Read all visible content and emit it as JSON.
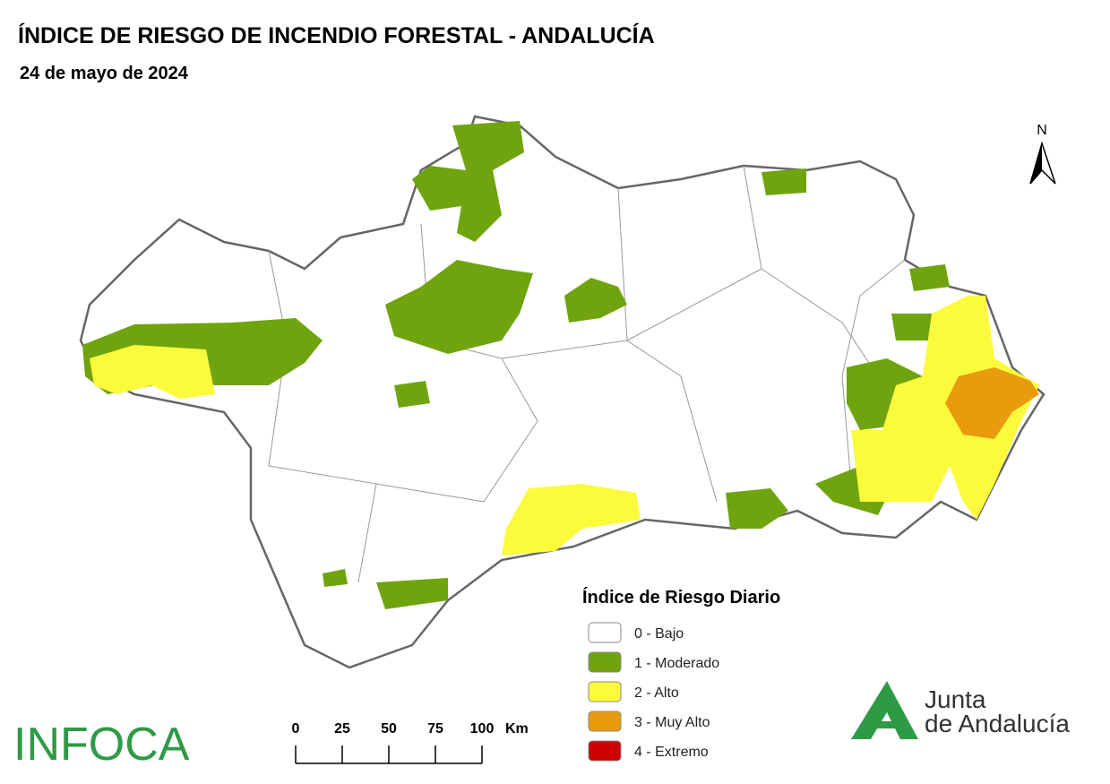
{
  "header": {
    "title": "ÍNDICE DE RIESGO DE INCENDIO FORESTAL - ANDALUCÍA",
    "date": "24 de mayo de 2024"
  },
  "north": "N",
  "legend": {
    "title": "Índice de Riesgo Diario",
    "items": [
      {
        "label": "0 - Bajo",
        "color": "#ffffff"
      },
      {
        "label": "1 - Moderado",
        "color": "#6fa40f"
      },
      {
        "label": "2 - Alto",
        "color": "#fbfb3c"
      },
      {
        "label": "3 - Muy Alto",
        "color": "#e89b0c"
      },
      {
        "label": "4 - Extremo",
        "color": "#cc0000"
      }
    ]
  },
  "scale": {
    "ticks": [
      0,
      25,
      50,
      75,
      100
    ],
    "unit": "Km"
  },
  "logos": {
    "infoca": "INFOCA",
    "junta_line1": "Junta",
    "junta_line2": "de Andalucía"
  }
}
